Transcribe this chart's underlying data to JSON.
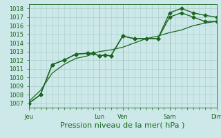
{
  "bg_color": "#cce8e8",
  "grid_color": "#aacccc",
  "line_color": "#1a6620",
  "title": "Pression niveau de la mer( hPa )",
  "ylim": [
    1006.5,
    1018.5
  ],
  "yticks": [
    1007,
    1008,
    1009,
    1010,
    1011,
    1012,
    1013,
    1014,
    1015,
    1016,
    1017,
    1018
  ],
  "x_day_labels": [
    "Jeu",
    "Lun",
    "Ven",
    "Sam",
    "Dim"
  ],
  "x_day_positions": [
    0,
    3,
    4,
    6,
    8
  ],
  "vline_positions": [
    0,
    3,
    4,
    6,
    8
  ],
  "line1_x": [
    0,
    0.5,
    1.0,
    1.5,
    2.0,
    2.5,
    2.75,
    3.0,
    3.25,
    3.5,
    4.0,
    4.5,
    5.0,
    5.5,
    6.0,
    6.5,
    7.0,
    7.5,
    8.0
  ],
  "line1_y": [
    1007.0,
    1008.0,
    1011.5,
    1012.0,
    1012.7,
    1012.8,
    1012.8,
    1012.5,
    1012.6,
    1012.5,
    1014.8,
    1014.5,
    1014.5,
    1014.5,
    1017.0,
    1017.5,
    1017.0,
    1016.5,
    1016.5
  ],
  "line2_x": [
    0,
    0.5,
    1.0,
    1.5,
    2.0,
    2.5,
    2.75,
    3.0,
    3.25,
    3.5,
    4.0,
    4.5,
    5.0,
    5.5,
    6.0,
    6.5,
    7.0,
    7.5,
    8.0
  ],
  "line2_y": [
    1007.0,
    1008.0,
    1011.5,
    1012.0,
    1012.7,
    1012.8,
    1012.8,
    1012.5,
    1012.6,
    1012.5,
    1014.8,
    1014.5,
    1014.5,
    1014.5,
    1017.5,
    1018.0,
    1017.5,
    1017.2,
    1017.0
  ],
  "line3_x": [
    0,
    0.5,
    1.0,
    1.5,
    2.0,
    2.5,
    3.0,
    3.5,
    4.0,
    4.5,
    5.0,
    5.5,
    6.0,
    6.5,
    7.0,
    7.5,
    8.0
  ],
  "line3_y": [
    1007.2,
    1008.5,
    1010.5,
    1011.5,
    1012.2,
    1012.5,
    1013.0,
    1013.2,
    1013.5,
    1014.0,
    1014.5,
    1014.8,
    1015.2,
    1015.5,
    1016.0,
    1016.3,
    1016.5
  ],
  "ylabel_fontsize": 6,
  "xlabel_fontsize": 8,
  "tick_fontsize": 6
}
